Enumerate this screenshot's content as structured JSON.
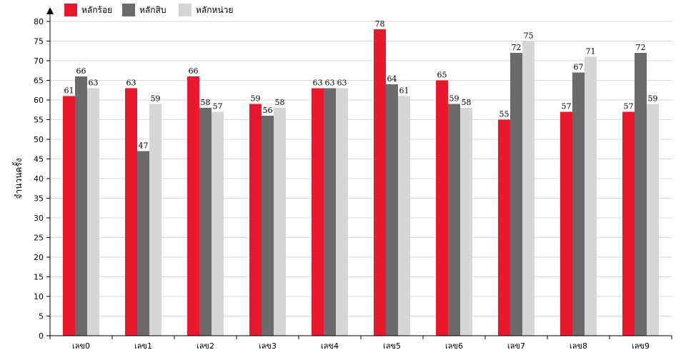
{
  "chart_data": {
    "type": "bar",
    "categories": [
      "เลข0",
      "เลข1",
      "เลข2",
      "เลข3",
      "เลข4",
      "เลข5",
      "เลข6",
      "เลข7",
      "เลข8",
      "เลข9"
    ],
    "series": [
      {
        "name": "หลักร้อย",
        "values": [
          61,
          63,
          66,
          59,
          63,
          78,
          65,
          55,
          57,
          57
        ]
      },
      {
        "name": "หลักสิบ",
        "values": [
          66,
          47,
          58,
          56,
          63,
          64,
          59,
          72,
          67,
          72
        ]
      },
      {
        "name": "หลักหน่วย",
        "values": [
          63,
          59,
          57,
          58,
          63,
          61,
          58,
          75,
          71,
          59
        ]
      }
    ],
    "colors": [
      "#e8192c",
      "#6b6b6b",
      "#d6d6d6"
    ],
    "ylabel": "จำนวนครั้ง",
    "xlabel": "",
    "ylim": [
      0,
      80
    ],
    "yticks": [
      0,
      5,
      10,
      15,
      20,
      25,
      30,
      35,
      40,
      45,
      50,
      55,
      60,
      65,
      70,
      75,
      80
    ],
    "grid": true,
    "legend_position": "top-left",
    "data_labels": true
  }
}
